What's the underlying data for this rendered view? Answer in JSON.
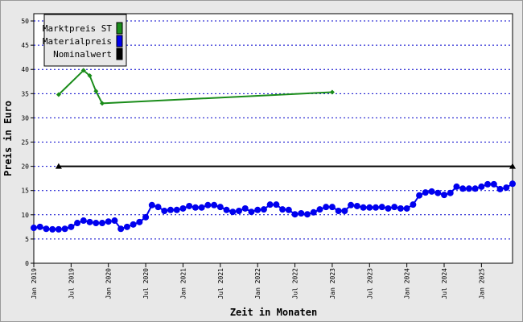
{
  "chart_data": {
    "type": "line",
    "xlabel": "Zeit in Monaten",
    "ylabel": "Preis in Euro",
    "x": [
      "2019-01",
      "2019-02",
      "2019-03",
      "2019-04",
      "2019-05",
      "2019-06",
      "2019-07",
      "2019-08",
      "2019-09",
      "2019-10",
      "2019-11",
      "2019-12",
      "2020-01",
      "2020-02",
      "2020-03",
      "2020-04",
      "2020-05",
      "2020-06",
      "2020-07",
      "2020-08",
      "2020-09",
      "2020-10",
      "2020-11",
      "2020-12",
      "2021-01",
      "2021-02",
      "2021-03",
      "2021-04",
      "2021-05",
      "2021-06",
      "2021-07",
      "2021-08",
      "2021-09",
      "2021-10",
      "2021-11",
      "2021-12",
      "2022-01",
      "2022-02",
      "2022-03",
      "2022-04",
      "2022-05",
      "2022-06",
      "2022-07",
      "2022-08",
      "2022-09",
      "2022-10",
      "2022-11",
      "2022-12",
      "2023-01",
      "2023-02",
      "2023-03",
      "2023-04",
      "2023-05",
      "2023-06",
      "2023-07",
      "2023-08",
      "2023-09",
      "2023-10",
      "2023-11",
      "2023-12",
      "2024-01",
      "2024-02",
      "2024-03",
      "2024-04",
      "2024-05",
      "2024-06",
      "2024-07",
      "2024-08",
      "2024-09",
      "2024-10",
      "2024-11",
      "2024-12",
      "2025-01",
      "2025-02",
      "2025-03",
      "2025-04",
      "2025-05",
      "2025-06"
    ],
    "xlim": [
      "2019-01",
      "2025-06"
    ],
    "xticks": [
      {
        "value": "2019-01",
        "label": "Jan 2019"
      },
      {
        "value": "2019-07",
        "label": "Jul 2019"
      },
      {
        "value": "2020-01",
        "label": "Jan 2020"
      },
      {
        "value": "2020-07",
        "label": "Jul 2020"
      },
      {
        "value": "2021-01",
        "label": "Jan 2021"
      },
      {
        "value": "2021-07",
        "label": "Jul 2021"
      },
      {
        "value": "2022-01",
        "label": "Jan 2022"
      },
      {
        "value": "2022-07",
        "label": "Jul 2022"
      },
      {
        "value": "2023-01",
        "label": "Jan 2023"
      },
      {
        "value": "2023-07",
        "label": "Jul 2023"
      },
      {
        "value": "2024-01",
        "label": "Jan 2024"
      },
      {
        "value": "2024-07",
        "label": "Jul 2024"
      },
      {
        "value": "2025-01",
        "label": "Jan 2025"
      }
    ],
    "ylim": [
      0,
      51.5
    ],
    "yticks": [
      0,
      5,
      10,
      15,
      20,
      25,
      30,
      35,
      40,
      45,
      50
    ],
    "grid": true,
    "legend": "top-left",
    "series": [
      {
        "name": "Marktpreis ST",
        "color": "#1a8c1a",
        "marker": "diamond",
        "x": [
          "2019-05",
          "2019-09",
          "2019-10",
          "2019-11",
          "2019-12",
          "2023-01"
        ],
        "values": [
          34.8,
          39.8,
          38.7,
          35.5,
          33.0,
          35.3
        ]
      },
      {
        "name": "Materialpreis",
        "color": "#0000ee",
        "marker": "circle",
        "values": [
          7.3,
          7.5,
          7.1,
          7.0,
          7.0,
          7.1,
          7.5,
          8.3,
          8.8,
          8.5,
          8.3,
          8.3,
          8.6,
          8.8,
          7.1,
          7.5,
          8.0,
          8.5,
          9.5,
          12.0,
          11.6,
          10.8,
          11.0,
          11.0,
          11.3,
          11.8,
          11.5,
          11.5,
          12.0,
          12.0,
          11.6,
          11.0,
          10.6,
          10.8,
          11.3,
          10.6,
          11.0,
          11.1,
          12.1,
          12.1,
          11.1,
          11.0,
          10.1,
          10.3,
          10.1,
          10.5,
          11.1,
          11.6,
          11.6,
          10.8,
          10.8,
          12.0,
          11.8,
          11.5,
          11.5,
          11.5,
          11.6,
          11.3,
          11.6,
          11.3,
          11.3,
          12.1,
          14.0,
          14.6,
          14.8,
          14.5,
          14.1,
          14.5,
          15.8,
          15.4,
          15.4,
          15.4,
          15.8,
          16.3,
          16.3,
          15.3,
          15.6,
          16.4
        ]
      },
      {
        "name": "Nominalwert",
        "color": "#000000",
        "marker": "triangle",
        "x": [
          "2019-05",
          "2025-06"
        ],
        "values": [
          20,
          20
        ]
      }
    ]
  }
}
